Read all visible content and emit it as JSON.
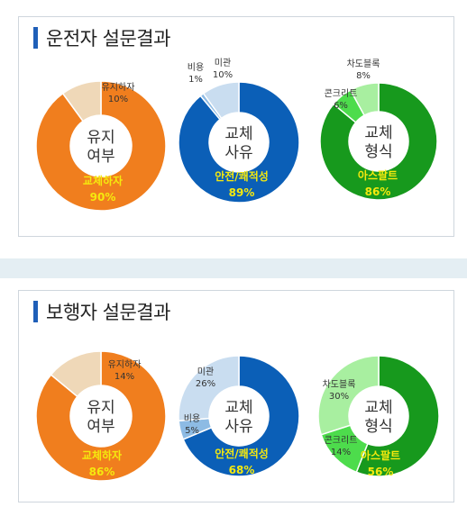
{
  "colors": {
    "orange": "#f07e1e",
    "beige": "#efd8b8",
    "blue": "#0b5fb7",
    "light_blue": "#c9ddf0",
    "mid_blue": "#8dbbe4",
    "green": "#17991d",
    "lime": "#4ddc4c",
    "pale_green": "#a8efa0",
    "highlight_text": "#f5e90e"
  },
  "panels": [
    {
      "title": "운전자 설문결과"
    },
    {
      "title": "보행자 설문결과"
    }
  ],
  "chart_data": [
    {
      "type": "pie",
      "donut": true,
      "center": [
        "유지",
        "여부"
      ],
      "slices": [
        {
          "label": "교체하자",
          "value": 90,
          "display": "90%"
        },
        {
          "label": "유지하자",
          "value": 10,
          "display": "10%"
        }
      ]
    },
    {
      "type": "pie",
      "donut": true,
      "center": [
        "교체",
        "사유"
      ],
      "slices": [
        {
          "label": "안전/쾌적성",
          "value": 89,
          "display": "89%"
        },
        {
          "label": "비용",
          "value": 1,
          "display": "1%"
        },
        {
          "label": "미관",
          "value": 10,
          "display": "10%"
        }
      ]
    },
    {
      "type": "pie",
      "donut": true,
      "center": [
        "교체",
        "형식"
      ],
      "slices": [
        {
          "label": "아스팔트",
          "value": 86,
          "display": "86%"
        },
        {
          "label": "콘크리트",
          "value": 6,
          "display": "6%"
        },
        {
          "label": "차도블록",
          "value": 8,
          "display": "8%"
        }
      ]
    },
    {
      "type": "pie",
      "donut": true,
      "center": [
        "유지",
        "여부"
      ],
      "slices": [
        {
          "label": "교체하자",
          "value": 86,
          "display": "86%"
        },
        {
          "label": "유지하자",
          "value": 14,
          "display": "14%"
        }
      ]
    },
    {
      "type": "pie",
      "donut": true,
      "center": [
        "교체",
        "사유"
      ],
      "slices": [
        {
          "label": "안전/쾌적성",
          "value": 68,
          "display": "68%"
        },
        {
          "label": "비용",
          "value": 5,
          "display": "5%"
        },
        {
          "label": "미관",
          "value": 26,
          "display": "26%"
        }
      ]
    },
    {
      "type": "pie",
      "donut": true,
      "center": [
        "교체",
        "형식"
      ],
      "slices": [
        {
          "label": "아스팔트",
          "value": 56,
          "display": "56%"
        },
        {
          "label": "콘크리트",
          "value": 14,
          "display": "14%"
        },
        {
          "label": "차도블록",
          "value": 30,
          "display": "30%"
        }
      ]
    }
  ]
}
